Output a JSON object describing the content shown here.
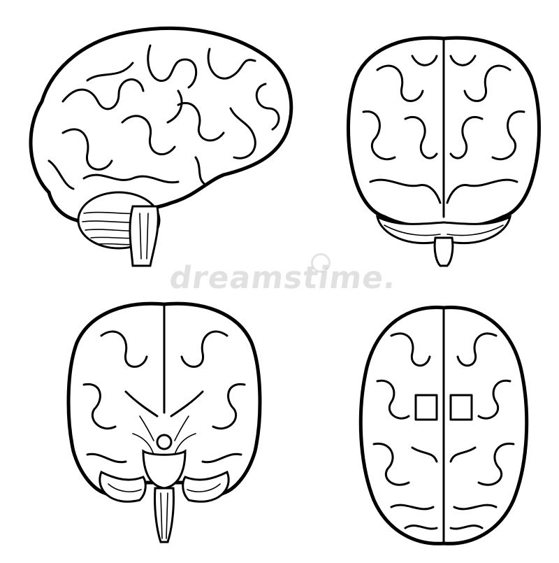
{
  "image": {
    "background": "#ffffff",
    "line_color": "#000000",
    "watermark_text": "dreamstime.",
    "watermark_color": "#c9c9c9"
  },
  "views": [
    {
      "name": "brain-side-view"
    },
    {
      "name": "brain-back-view"
    },
    {
      "name": "brain-front-view"
    },
    {
      "name": "brain-top-view"
    }
  ]
}
